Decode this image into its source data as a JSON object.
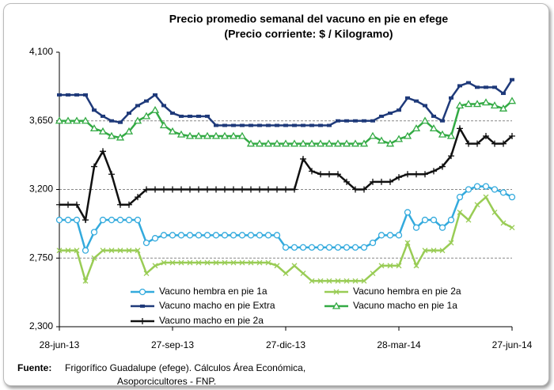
{
  "chart_data": {
    "type": "line",
    "title": "Precio promedio semanal del vacuno en pie en efege",
    "subtitle": "(Precio corriente: $ / Kilogramo)",
    "categories": [
      "28-jun-13",
      null,
      null,
      null,
      null,
      null,
      null,
      null,
      null,
      null,
      null,
      null,
      null,
      "27-sep-13",
      null,
      null,
      null,
      null,
      null,
      null,
      null,
      null,
      null,
      null,
      null,
      null,
      "27-dic-13",
      null,
      null,
      null,
      null,
      null,
      null,
      null,
      null,
      null,
      null,
      null,
      null,
      "28-mar-14",
      null,
      null,
      null,
      null,
      null,
      null,
      null,
      null,
      null,
      null,
      null,
      null,
      "27-jun-14"
    ],
    "ylim": [
      2300,
      4100
    ],
    "yticks": [
      {
        "value": 2300,
        "label": "2,300"
      },
      {
        "value": 2750,
        "label": "2,750"
      },
      {
        "value": 3200,
        "label": "3,200"
      },
      {
        "value": 3650,
        "label": "3,650"
      },
      {
        "value": 4100,
        "label": "4,100"
      }
    ],
    "grid": true,
    "series": [
      {
        "name": "Vacuno hembra en pie 1a",
        "color": "#33aadd",
        "marker": "circle",
        "values": [
          3000,
          3000,
          3000,
          2800,
          2920,
          3000,
          3000,
          3000,
          3000,
          3000,
          2850,
          2880,
          2900,
          2900,
          2900,
          2900,
          2900,
          2900,
          2900,
          2900,
          2900,
          2900,
          2900,
          2900,
          2900,
          2900,
          2820,
          2820,
          2820,
          2820,
          2820,
          2820,
          2820,
          2820,
          2820,
          2820,
          2850,
          2900,
          2900,
          2900,
          3050,
          2950,
          3000,
          3000,
          2950,
          3000,
          3150,
          3200,
          3220,
          3220,
          3200,
          3180,
          3150
        ]
      },
      {
        "name": "Vacuno hembra en pie 2a",
        "color": "#99cc55",
        "marker": "x",
        "values": [
          2800,
          2800,
          2800,
          2600,
          2750,
          2800,
          2800,
          2800,
          2800,
          2800,
          2650,
          2700,
          2720,
          2720,
          2720,
          2720,
          2720,
          2720,
          2720,
          2720,
          2720,
          2720,
          2720,
          2720,
          2720,
          2700,
          2650,
          2700,
          2650,
          2600,
          2600,
          2600,
          2600,
          2600,
          2600,
          2600,
          2650,
          2700,
          2700,
          2700,
          2850,
          2700,
          2800,
          2800,
          2800,
          2850,
          3050,
          3000,
          3100,
          3150,
          3050,
          2980,
          2950
        ]
      },
      {
        "name": "Vacuno macho en pie Extra",
        "color": "#1f3a7a",
        "marker": "square",
        "values": [
          3820,
          3820,
          3820,
          3820,
          3720,
          3680,
          3650,
          3640,
          3700,
          3750,
          3780,
          3820,
          3750,
          3700,
          3680,
          3680,
          3680,
          3680,
          3620,
          3620,
          3620,
          3620,
          3620,
          3620,
          3620,
          3620,
          3620,
          3620,
          3620,
          3620,
          3620,
          3620,
          3650,
          3650,
          3650,
          3650,
          3650,
          3680,
          3700,
          3720,
          3800,
          3780,
          3750,
          3680,
          3650,
          3800,
          3880,
          3900,
          3870,
          3870,
          3870,
          3830,
          3920
        ]
      },
      {
        "name": "Vacuno macho en pie 1a",
        "color": "#33aa44",
        "marker": "triangle",
        "values": [
          3650,
          3650,
          3650,
          3650,
          3600,
          3580,
          3550,
          3540,
          3580,
          3650,
          3680,
          3720,
          3620,
          3580,
          3560,
          3550,
          3550,
          3550,
          3550,
          3550,
          3550,
          3550,
          3500,
          3500,
          3500,
          3500,
          3500,
          3500,
          3500,
          3500,
          3500,
          3500,
          3500,
          3500,
          3500,
          3500,
          3550,
          3520,
          3500,
          3530,
          3550,
          3600,
          3650,
          3600,
          3560,
          3550,
          3750,
          3760,
          3760,
          3770,
          3750,
          3730,
          3780
        ]
      },
      {
        "name": "Vacuno macho en pie 2a",
        "color": "#111111",
        "marker": "plus",
        "values": [
          3100,
          3100,
          3100,
          3000,
          3350,
          3450,
          3300,
          3100,
          3100,
          3150,
          3200,
          3200,
          3200,
          3200,
          3200,
          3200,
          3200,
          3200,
          3200,
          3200,
          3200,
          3200,
          3200,
          3200,
          3200,
          3200,
          3200,
          3200,
          3400,
          3320,
          3300,
          3300,
          3300,
          3250,
          3200,
          3200,
          3250,
          3250,
          3250,
          3280,
          3300,
          3300,
          3300,
          3320,
          3350,
          3420,
          3600,
          3500,
          3500,
          3550,
          3500,
          3500,
          3550
        ]
      }
    ],
    "source_label": "Fuente:",
    "source_text": "Frigorífico Guadalupe (efege). Cálculos Área Económica,",
    "source_text_2": "Asoporcicultores  - FNP."
  }
}
